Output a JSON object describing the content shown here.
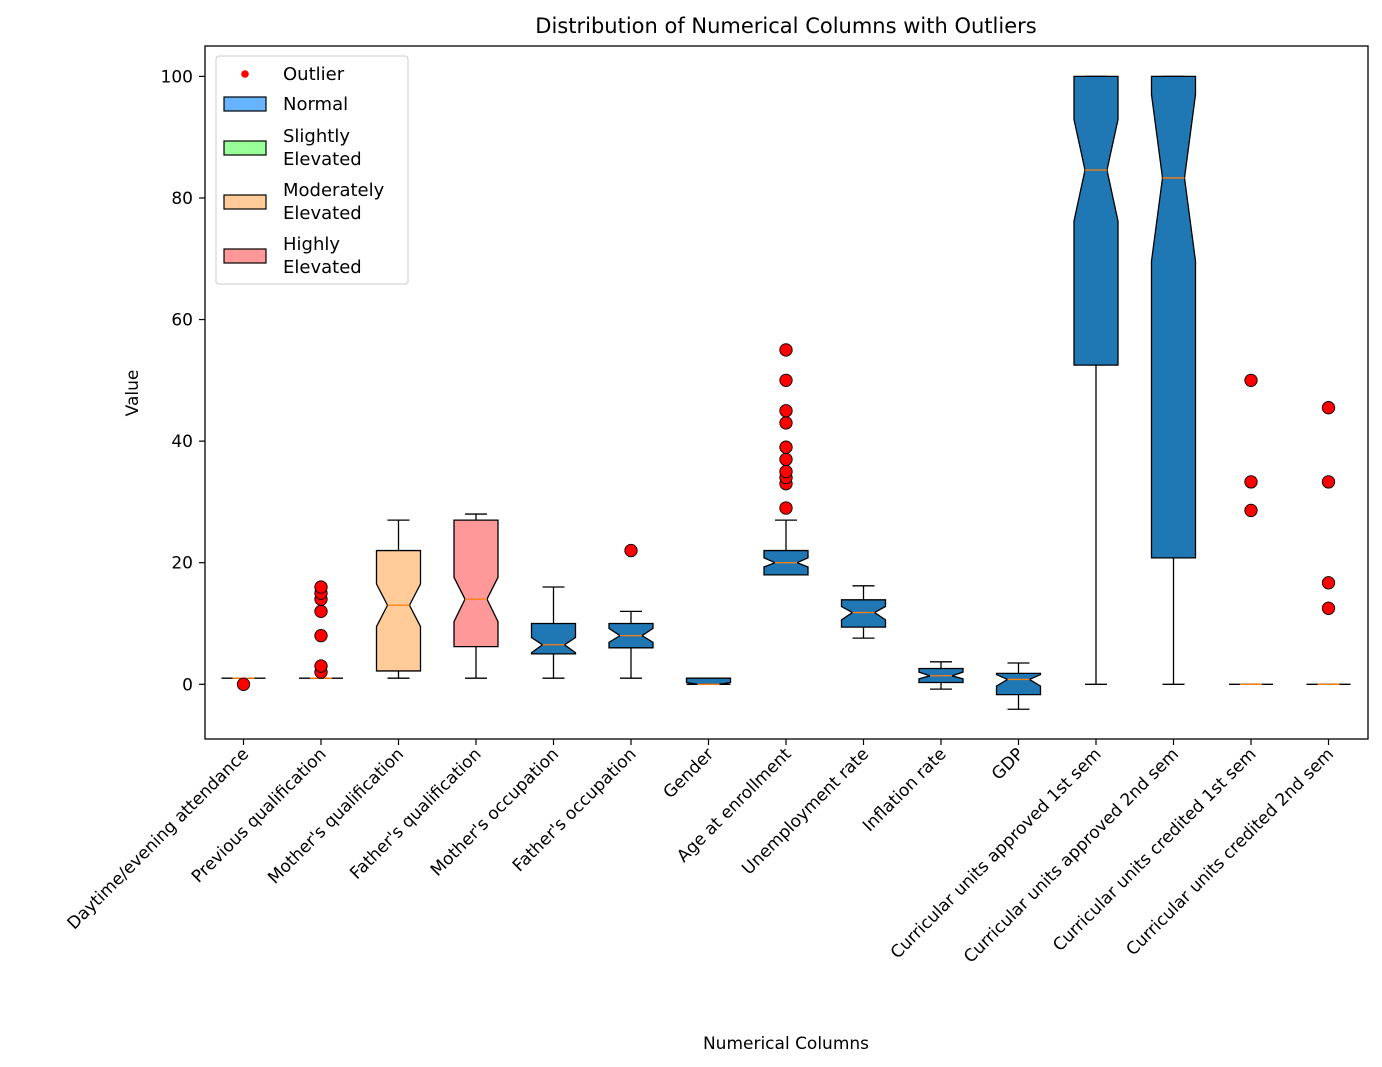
{
  "chart_data": {
    "type": "box",
    "title": "Distribution of Numerical Columns with Outliers",
    "xlabel": "Numerical Columns",
    "ylabel": "Value",
    "ylim": [
      -9,
      105
    ],
    "yticks": [
      0,
      20,
      40,
      60,
      80,
      100
    ],
    "grid": false,
    "legend_position": "top-left",
    "legend": [
      {
        "label": "Outlier",
        "kind": "marker",
        "color": "#ff0000"
      },
      {
        "label": "Normal",
        "kind": "patch",
        "color": "#66b3ff"
      },
      {
        "label": "Slightly\nElevated",
        "kind": "patch",
        "color": "#99ff99"
      },
      {
        "label": "Moderately\nElevated",
        "kind": "patch",
        "color": "#ffcc99"
      },
      {
        "label": "Highly\nElevated",
        "kind": "patch",
        "color": "#ff9999"
      }
    ],
    "colors": {
      "default_box": "#1f77b4",
      "median": "#ff7f0e",
      "outlier": "#ff0000"
    },
    "boxes": [
      {
        "name": "Daytime/evening attendance",
        "q1": 1,
        "median": 1,
        "q3": 1,
        "whisker_low": 1,
        "whisker_high": 1,
        "notch_low": 1,
        "notch_high": 1,
        "color": "#1f77b4",
        "outliers": [
          0
        ]
      },
      {
        "name": "Previous qualification",
        "q1": 1,
        "median": 1,
        "q3": 1,
        "whisker_low": 1,
        "whisker_high": 1,
        "notch_low": 1,
        "notch_high": 1,
        "color": "#1f77b4",
        "outliers": [
          2,
          3,
          8,
          12,
          14,
          15,
          16
        ]
      },
      {
        "name": "Mother's qualification",
        "q1": 2.2,
        "median": 13,
        "q3": 22,
        "whisker_low": 1,
        "whisker_high": 27,
        "notch_low": 9.5,
        "notch_high": 16.5,
        "color": "#ffcc99",
        "outliers": []
      },
      {
        "name": "Father's qualification",
        "q1": 6.2,
        "median": 14,
        "q3": 27,
        "whisker_low": 1,
        "whisker_high": 28,
        "notch_low": 10.3,
        "notch_high": 17.6,
        "color": "#ff9999",
        "outliers": []
      },
      {
        "name": "Mother's occupation",
        "q1": 5,
        "median": 6.5,
        "q3": 10,
        "whisker_low": 1,
        "whisker_high": 16,
        "notch_low": 5.2,
        "notch_high": 7.7,
        "color": "#1f77b4",
        "outliers": []
      },
      {
        "name": "Father's occupation",
        "q1": 6,
        "median": 8,
        "q3": 10,
        "whisker_low": 1,
        "whisker_high": 12,
        "notch_low": 6.9,
        "notch_high": 9.2,
        "color": "#1f77b4",
        "outliers": [
          22
        ]
      },
      {
        "name": "Gender",
        "q1": 0,
        "median": 0,
        "q3": 1,
        "whisker_low": 0,
        "whisker_high": 1,
        "notch_low": 0,
        "notch_high": 0.3,
        "color": "#1f77b4",
        "outliers": []
      },
      {
        "name": "Age at enrollment",
        "q1": 18,
        "median": 20,
        "q3": 22,
        "whisker_low": 18,
        "whisker_high": 27,
        "notch_low": 19.3,
        "notch_high": 20.8,
        "color": "#1f77b4",
        "outliers": [
          29,
          33,
          34,
          35,
          37,
          39,
          43,
          45,
          50,
          55
        ]
      },
      {
        "name": "Unemployment rate",
        "q1": 9.4,
        "median": 11.8,
        "q3": 13.9,
        "whisker_low": 7.6,
        "whisker_high": 16.2,
        "notch_low": 10.6,
        "notch_high": 12.8,
        "color": "#1f77b4",
        "outliers": []
      },
      {
        "name": "Inflation rate",
        "q1": 0.3,
        "median": 1.4,
        "q3": 2.6,
        "whisker_low": -0.8,
        "whisker_high": 3.7,
        "notch_low": 0.9,
        "notch_high": 2.0,
        "color": "#1f77b4",
        "outliers": []
      },
      {
        "name": "GDP",
        "q1": -1.7,
        "median": 0.8,
        "q3": 1.8,
        "whisker_low": -4.1,
        "whisker_high": 3.5,
        "notch_low": -0.3,
        "notch_high": 1.6,
        "color": "#1f77b4",
        "outliers": []
      },
      {
        "name": "Curricular units approved 1st sem",
        "q1": 52.5,
        "median": 84.6,
        "q3": 100,
        "whisker_low": 0,
        "whisker_high": 100,
        "notch_low": 76.2,
        "notch_high": 92.9,
        "color": "#1f77b4",
        "outliers": []
      },
      {
        "name": "Curricular units approved 2nd sem",
        "q1": 20.8,
        "median": 83.3,
        "q3": 100,
        "whisker_low": 0,
        "whisker_high": 100,
        "notch_low": 69.6,
        "notch_high": 97,
        "color": "#1f77b4",
        "outliers": []
      },
      {
        "name": "Curricular units credited 1st sem",
        "q1": 0,
        "median": 0,
        "q3": 0,
        "whisker_low": 0,
        "whisker_high": 0,
        "notch_low": 0,
        "notch_high": 0,
        "color": "#1f77b4",
        "outliers": [
          28.6,
          33.3,
          50
        ]
      },
      {
        "name": "Curricular units credited 2nd sem",
        "q1": 0,
        "median": 0,
        "q3": 0,
        "whisker_low": 0,
        "whisker_high": 0,
        "notch_low": 0,
        "notch_high": 0,
        "color": "#1f77b4",
        "outliers": [
          12.5,
          16.7,
          33.3,
          45.5
        ]
      }
    ]
  }
}
